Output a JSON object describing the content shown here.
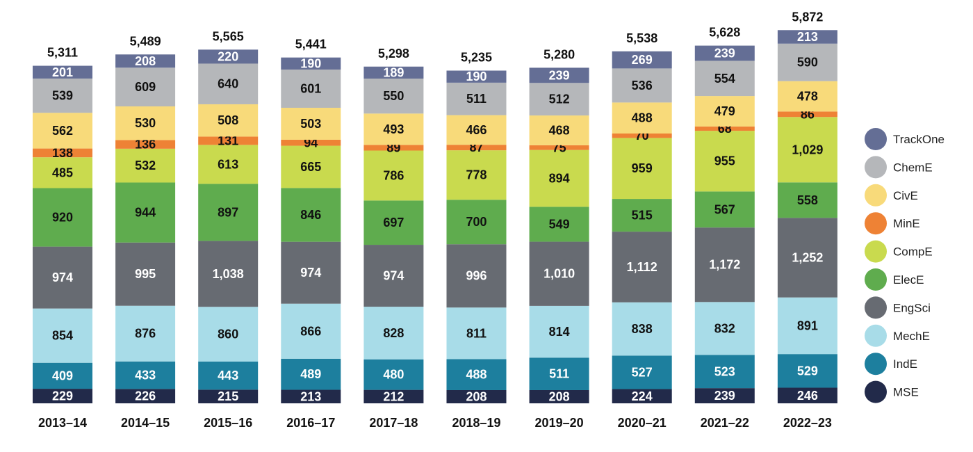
{
  "chart_data": {
    "type": "bar",
    "stacked": true,
    "title": "",
    "xlabel": "",
    "ylabel": "",
    "legend_position": "right",
    "categories": [
      "2013–14",
      "2014–15",
      "2015–16",
      "2016–17",
      "2017–18",
      "2018–19",
      "2019–20",
      "2020–21",
      "2021–22",
      "2022–23"
    ],
    "totals": [
      "5,311",
      "5,489",
      "5,565",
      "5,441",
      "5,298",
      "5,235",
      "5,280",
      "5,538",
      "5,628",
      "5,872"
    ],
    "series": [
      {
        "name": "MSE",
        "color": "#222a4a",
        "label_color": "#ffffff",
        "values": [
          229,
          226,
          215,
          213,
          212,
          208,
          208,
          224,
          239,
          246
        ]
      },
      {
        "name": "IndE",
        "color": "#1d7f9e",
        "label_color": "#ffffff",
        "values": [
          409,
          433,
          443,
          489,
          480,
          488,
          511,
          527,
          523,
          529
        ]
      },
      {
        "name": "MechE",
        "color": "#a8dce8",
        "label_color": "#111111",
        "values": [
          854,
          876,
          860,
          866,
          828,
          811,
          814,
          838,
          832,
          891
        ]
      },
      {
        "name": "EngSci",
        "color": "#676b72",
        "label_color": "#ffffff",
        "values": [
          974,
          995,
          1038,
          974,
          974,
          996,
          1010,
          1112,
          1172,
          1252
        ]
      },
      {
        "name": "ElecE",
        "color": "#5fac4e",
        "label_color": "#111111",
        "values": [
          920,
          944,
          897,
          846,
          697,
          700,
          549,
          515,
          567,
          558
        ]
      },
      {
        "name": "CompE",
        "color": "#c9da4e",
        "label_color": "#111111",
        "values": [
          485,
          532,
          613,
          665,
          786,
          778,
          894,
          959,
          955,
          1029
        ]
      },
      {
        "name": "MinE",
        "color": "#ee8235",
        "label_color": "#111111",
        "values": [
          138,
          136,
          131,
          94,
          89,
          87,
          75,
          70,
          68,
          86
        ]
      },
      {
        "name": "CivE",
        "color": "#f8da7a",
        "label_color": "#111111",
        "values": [
          562,
          530,
          508,
          503,
          493,
          466,
          468,
          488,
          479,
          478
        ]
      },
      {
        "name": "ChemE",
        "color": "#b5b7ba",
        "label_color": "#111111",
        "values": [
          539,
          609,
          640,
          601,
          550,
          511,
          512,
          536,
          554,
          590
        ]
      },
      {
        "name": "TrackOne",
        "color": "#646e95",
        "label_color": "#ffffff",
        "values": [
          201,
          208,
          220,
          190,
          189,
          190,
          239,
          269,
          239,
          213
        ]
      }
    ],
    "legend_order": [
      "TrackOne",
      "ChemE",
      "CivE",
      "MinE",
      "CompE",
      "ElecE",
      "EngSci",
      "MechE",
      "IndE",
      "MSE"
    ]
  }
}
